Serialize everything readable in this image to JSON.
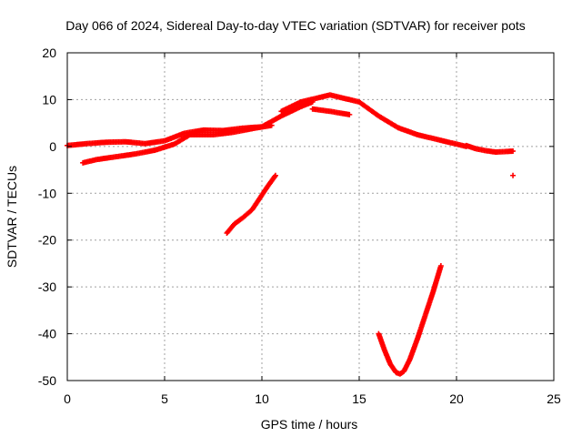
{
  "chart_data": {
    "type": "scatter",
    "title": "Day 066 of 2024, Sidereal Day-to-day VTEC variation (SDTVAR) for receiver pots",
    "xlabel": "GPS time / hours",
    "ylabel": "SDTVAR / TECUs",
    "xlim": [
      0,
      25
    ],
    "ylim": [
      -50,
      20
    ],
    "xticks": [
      0,
      5,
      10,
      15,
      20,
      25
    ],
    "yticks": [
      -50,
      -40,
      -30,
      -20,
      -10,
      0,
      10,
      20
    ],
    "grid": true,
    "marker": "+",
    "color": "#ff0000",
    "series": [
      {
        "name": "band-main-a",
        "x": [
          0,
          1,
          2,
          3,
          4,
          5,
          6,
          7,
          8,
          9,
          10,
          11,
          12,
          12.6
        ],
        "y": [
          0.2,
          0.6,
          0.9,
          1.0,
          0.6,
          1.2,
          2.8,
          3.5,
          3.4,
          3.9,
          4.2,
          6.5,
          8.5,
          9.5
        ]
      },
      {
        "name": "band-main-b",
        "x": [
          0.8,
          1.5,
          2.5,
          3.5,
          4.5,
          5.5,
          6.3,
          7.5,
          8.5,
          9.5,
          10.5
        ],
        "y": [
          -3.5,
          -2.8,
          -2.2,
          -1.6,
          -0.8,
          0.5,
          2.5,
          2.5,
          3.0,
          3.8,
          4.5
        ]
      },
      {
        "name": "band-peak",
        "x": [
          11,
          12,
          13,
          13.5,
          14,
          15,
          16,
          17,
          18,
          19,
          20,
          20.5
        ],
        "y": [
          7.5,
          9.5,
          10.5,
          11.0,
          10.5,
          9.5,
          6.5,
          4.0,
          2.5,
          1.5,
          0.5,
          0.0
        ]
      },
      {
        "name": "band-peak-low",
        "x": [
          12.6,
          13.5,
          14.5
        ],
        "y": [
          8.0,
          7.5,
          6.8
        ]
      },
      {
        "name": "band-tail",
        "x": [
          20.5,
          21,
          21.5,
          22,
          22.5,
          22.9
        ],
        "y": [
          0.2,
          -0.5,
          -0.9,
          -1.2,
          -1.1,
          -1.0
        ]
      },
      {
        "name": "isolated-point",
        "x": [
          22.9
        ],
        "y": [
          -6.2
        ]
      },
      {
        "name": "arc-1",
        "x": [
          8.2,
          8.6,
          9.0,
          9.5,
          9.9,
          10.3,
          10.7
        ],
        "y": [
          -18.5,
          -16.5,
          -15.3,
          -13.5,
          -11.0,
          -8.5,
          -6.2
        ]
      },
      {
        "name": "arc-2",
        "x": [
          16.0,
          16.3,
          16.6,
          16.9,
          17.1,
          17.3,
          17.6,
          18.0,
          18.4,
          18.8,
          19.2
        ],
        "y": [
          -40.0,
          -43.5,
          -46.5,
          -48.3,
          -48.6,
          -48.0,
          -45.5,
          -41.0,
          -36.0,
          -31.0,
          -25.5
        ]
      }
    ]
  }
}
